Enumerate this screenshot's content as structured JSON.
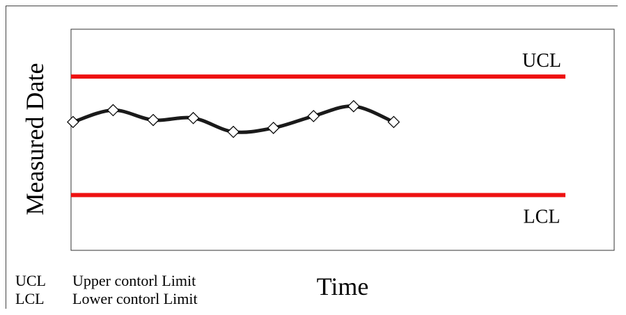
{
  "chart_data": {
    "type": "line",
    "ylabel": "Measured Date",
    "xlabel": "Time",
    "limits": [
      {
        "name": "UCL",
        "value": 80
      },
      {
        "name": "LCL",
        "value": 20
      }
    ],
    "x": [
      1,
      2,
      3,
      4,
      5,
      6,
      7,
      8,
      9
    ],
    "values": [
      57,
      63,
      58,
      59,
      52,
      54,
      60,
      65,
      57
    ],
    "xlim": [
      0.95,
      14.5
    ],
    "ylim": [
      -8,
      104
    ],
    "line_color": "#1a1a1a",
    "limit_color": "#ee1111"
  },
  "legend": {
    "items": [
      {
        "abbr": "UCL",
        "text": "Upper contorl Limit"
      },
      {
        "abbr": "LCL",
        "text": "Lower contorl Limit"
      }
    ]
  }
}
